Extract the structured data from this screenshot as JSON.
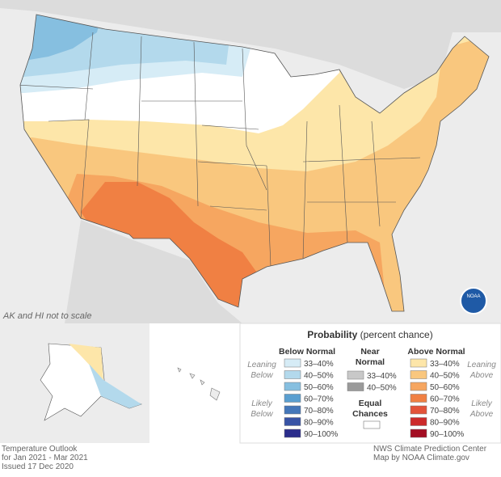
{
  "map": {
    "note": "AK and HI not to scale",
    "logo": "NOAA"
  },
  "legend": {
    "title": "Probability",
    "subtitle": "(percent chance)",
    "below": {
      "title": "Below Normal",
      "leaning": [
        "Leaning",
        "Below"
      ],
      "likely": [
        "Likely",
        "Below"
      ],
      "items": [
        {
          "label": "33–40%",
          "color": "#d6ecf6"
        },
        {
          "label": "40–50%",
          "color": "#b3d9ec"
        },
        {
          "label": "50–60%",
          "color": "#86bfe0"
        },
        {
          "label": "60–70%",
          "color": "#5a9fd0"
        },
        {
          "label": "70–80%",
          "color": "#4477b9"
        },
        {
          "label": "80–90%",
          "color": "#3853a5"
        },
        {
          "label": "90–100%",
          "color": "#2b2d8c"
        }
      ]
    },
    "near": {
      "title": [
        "Near",
        "Normal"
      ],
      "items": [
        {
          "label": "33–40%",
          "color": "#c8c8c8"
        },
        {
          "label": "40–50%",
          "color": "#9a9a9a"
        }
      ]
    },
    "equal": {
      "title": [
        "Equal",
        "Chances"
      ],
      "color": "#ffffff"
    },
    "above": {
      "title": "Above Normal",
      "leaning": [
        "Leaning",
        "Above"
      ],
      "likely": [
        "Likely",
        "Above"
      ],
      "items": [
        {
          "label": "33–40%",
          "color": "#fde6a9"
        },
        {
          "label": "40–50%",
          "color": "#f9c77e"
        },
        {
          "label": "50–60%",
          "color": "#f6a660"
        },
        {
          "label": "60–70%",
          "color": "#f08043"
        },
        {
          "label": "70–80%",
          "color": "#e3533a"
        },
        {
          "label": "80–90%",
          "color": "#cc2a2a"
        },
        {
          "label": "90–100%",
          "color": "#a30d22"
        }
      ]
    }
  },
  "footer": {
    "left": [
      "Temperature Outlook",
      "for Jan 2021 - Mar 2021",
      "Issued 17 Dec 2020"
    ],
    "right": [
      "NWS Climate Prediction Center",
      "Map by NOAA Climate.gov"
    ]
  }
}
